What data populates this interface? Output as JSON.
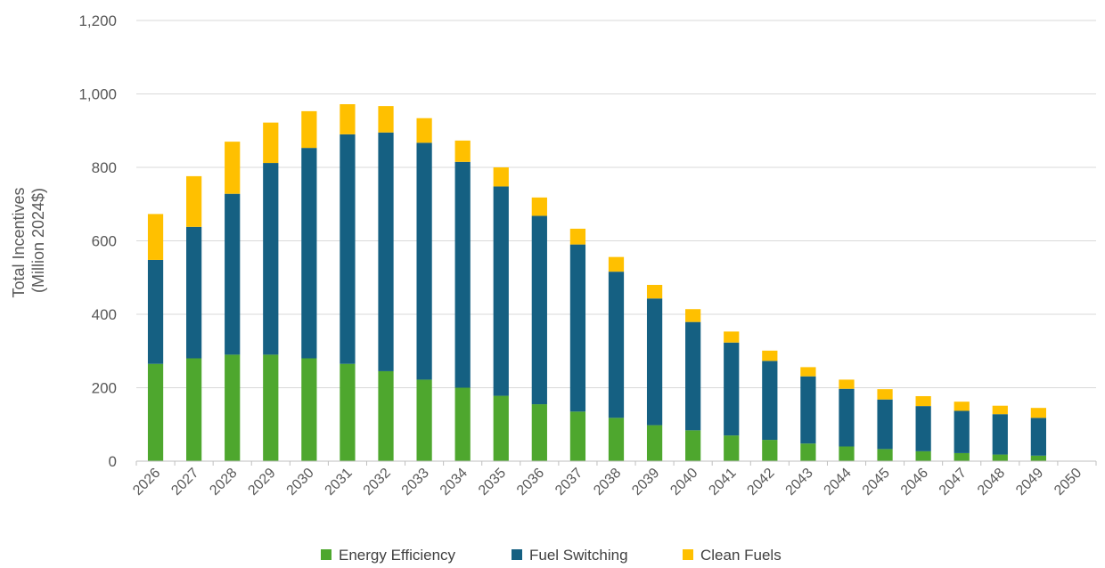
{
  "chart_data": {
    "type": "bar",
    "stacked": true,
    "categories": [
      "2026",
      "2027",
      "2028",
      "2029",
      "2030",
      "2031",
      "2032",
      "2033",
      "2034",
      "2035",
      "2036",
      "2037",
      "2038",
      "2039",
      "2040",
      "2041",
      "2042",
      "2043",
      "2044",
      "2045",
      "2046",
      "2047",
      "2048",
      "2049",
      "2050"
    ],
    "series": [
      {
        "name": "Energy Efficiency",
        "color": "#4ea72e",
        "values": [
          265,
          280,
          290,
          290,
          280,
          265,
          245,
          222,
          200,
          178,
          155,
          135,
          118,
          98,
          84,
          70,
          58,
          48,
          40,
          33,
          27,
          22,
          18,
          15,
          0
        ]
      },
      {
        "name": "Fuel Switching",
        "color": "#156082",
        "values": [
          283,
          358,
          438,
          522,
          573,
          625,
          650,
          645,
          615,
          570,
          513,
          455,
          398,
          345,
          295,
          253,
          215,
          183,
          157,
          135,
          123,
          115,
          110,
          103,
          0
        ]
      },
      {
        "name": "Clean Fuels",
        "color": "#ffc000",
        "values": [
          125,
          138,
          142,
          110,
          100,
          82,
          72,
          67,
          58,
          52,
          50,
          43,
          40,
          37,
          35,
          30,
          28,
          25,
          25,
          28,
          27,
          25,
          23,
          27,
          0
        ]
      }
    ],
    "xlabel": "",
    "ylabel_line1": "Total Incentives",
    "ylabel_line2": "(Million 2024$)",
    "ylim": [
      0,
      1200
    ],
    "yticks": [
      0,
      200,
      400,
      600,
      800,
      1000,
      1200
    ],
    "ytick_labels": [
      "0",
      "200",
      "400",
      "600",
      "800",
      "1,000",
      "1,200"
    ],
    "grid": true,
    "legend_position": "bottom"
  }
}
